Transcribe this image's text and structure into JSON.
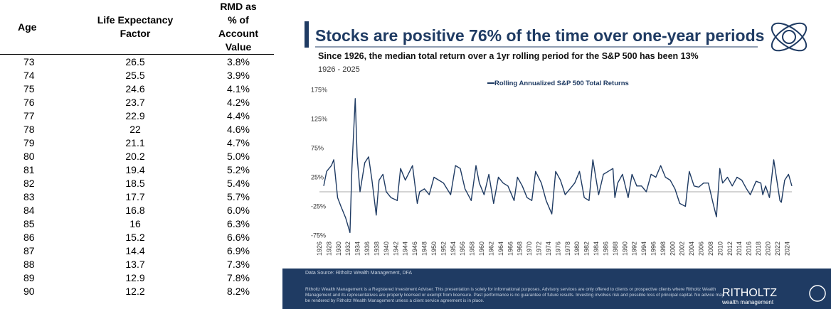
{
  "table": {
    "header": [
      "Age",
      "Life Expectancy Factor",
      "RMD as % of Account Value"
    ],
    "rows": [
      [
        "73",
        "26.5",
        "3.8%"
      ],
      [
        "74",
        "25.5",
        "3.9%"
      ],
      [
        "75",
        "24.6",
        "4.1%"
      ],
      [
        "76",
        "23.7",
        "4.2%"
      ],
      [
        "77",
        "22.9",
        "4.4%"
      ],
      [
        "78",
        "22",
        "4.6%"
      ],
      [
        "79",
        "21.1",
        "4.7%"
      ],
      [
        "80",
        "20.2",
        "5.0%"
      ],
      [
        "81",
        "19.4",
        "5.2%"
      ],
      [
        "82",
        "18.5",
        "5.4%"
      ],
      [
        "83",
        "17.7",
        "5.7%"
      ],
      [
        "84",
        "16.8",
        "6.0%"
      ],
      [
        "85",
        "16",
        "6.3%"
      ],
      [
        "86",
        "15.2",
        "6.6%"
      ],
      [
        "87",
        "14.4",
        "6.9%"
      ],
      [
        "88",
        "13.7",
        "7.3%"
      ],
      [
        "89",
        "12.9",
        "7.8%"
      ],
      [
        "90",
        "12.2",
        "8.2%"
      ]
    ]
  },
  "chart_data": {
    "type": "line",
    "title": "Stocks are positive 76% of the time over one-year periods",
    "subtitle": "Since 1926, the median total return over a 1yr rolling period for the S&P 500 has been 13%",
    "date_range": "1926 - 2025",
    "source": "Data Source: Ritholtz Wealth Management, DFA",
    "disclaimer": "Ritholtz Wealth Management is a Registered Investment Adviser. This presentation is solely for informational purposes. Advisory services are only offered to clients or prospective clients where Ritholtz Wealth Management and its representatives are properly licensed or exempt from licensure. Past performance is no guarantee of future results. Investing involves risk and possible loss of principal capital. No advice may be rendered by Ritholtz Wealth Management unless a client service agreement is in place.",
    "logo": [
      "RITHOLTZ",
      "wealth management"
    ],
    "x": [
      1926.9,
      1927.5,
      1928.5,
      1929,
      1929.8,
      1930.5,
      1931.5,
      1932.4,
      1932.8,
      1933.5,
      1933.9,
      1934.5,
      1935.5,
      1936.3,
      1937,
      1937.9,
      1938.5,
      1939.3,
      1940,
      1941,
      1942.3,
      1943,
      1944,
      1945.5,
      1946.5,
      1947,
      1948,
      1949,
      1950,
      1951,
      1952,
      1953.5,
      1954.5,
      1955.5,
      1956.5,
      1957.8,
      1958.8,
      1959.5,
      1960.5,
      1961.5,
      1962.5,
      1963.5,
      1964.5,
      1965.5,
      1966.8,
      1967.5,
      1968.5,
      1969.5,
      1970.5,
      1971.3,
      1972.5,
      1973.5,
      1974.7,
      1975.5,
      1976.5,
      1977.5,
      1978.5,
      1979.5,
      1980.5,
      1981.5,
      1982.5,
      1983.3,
      1984.5,
      1985.5,
      1986.5,
      1987.5,
      1987.9,
      1988.5,
      1989.5,
      1990.7,
      1991.5,
      1992.5,
      1993.5,
      1994.5,
      1995.5,
      1996.5,
      1997.5,
      1998.5,
      1999.5,
      2000.5,
      2001.5,
      2002.7,
      2003.5,
      2004.5,
      2005.5,
      2006.5,
      2007.5,
      2008.5,
      2009.2,
      2009.9,
      2010.5,
      2011.5,
      2012.5,
      2013.5,
      2014.5,
      2015.5,
      2016.3,
      2017.5,
      2018.5,
      2018.9,
      2019.5,
      2020.3,
      2021.2,
      2022.5,
      2022.8,
      2023.5,
      2024.3,
      2025
    ],
    "series": [
      {
        "name": "Rolling Annualized S&P 500 Total Returns",
        "color": "#1f3b63",
        "values": [
          10,
          35,
          45,
          55,
          -10,
          -25,
          -45,
          -70,
          40,
          160,
          60,
          0,
          50,
          60,
          20,
          -40,
          20,
          30,
          0,
          -10,
          -15,
          40,
          20,
          45,
          -20,
          0,
          5,
          -5,
          25,
          20,
          15,
          -5,
          45,
          40,
          5,
          -15,
          45,
          15,
          -5,
          30,
          -20,
          25,
          15,
          10,
          -15,
          25,
          10,
          -10,
          -15,
          35,
          15,
          -15,
          -38,
          35,
          20,
          -5,
          5,
          15,
          35,
          -10,
          -15,
          55,
          -5,
          30,
          35,
          40,
          -10,
          15,
          30,
          -10,
          30,
          10,
          10,
          0,
          30,
          25,
          45,
          25,
          20,
          5,
          -20,
          -25,
          35,
          10,
          8,
          15,
          15,
          -20,
          -43,
          40,
          15,
          25,
          10,
          25,
          20,
          5,
          -5,
          18,
          15,
          -5,
          10,
          -10,
          55,
          -15,
          -18,
          20,
          30,
          10
        ]
      }
    ],
    "xlim": [
      1926,
      2025
    ],
    "ylim": [
      -75,
      175
    ],
    "xticks": [
      1926,
      1928,
      1930,
      1932,
      1934,
      1936,
      1938,
      1940,
      1942,
      1944,
      1946,
      1948,
      1950,
      1952,
      1954,
      1956,
      1958,
      1960,
      1962,
      1964,
      1966,
      1968,
      1970,
      1972,
      1974,
      1976,
      1978,
      1980,
      1982,
      1984,
      1986,
      1988,
      1990,
      1992,
      1994,
      1996,
      1998,
      2000,
      2002,
      2004,
      2006,
      2008,
      2010,
      2012,
      2014,
      2016,
      2018,
      2020,
      2022,
      2024
    ],
    "yticks": [
      {
        "value": -75,
        "label": "-75%"
      },
      {
        "value": -25,
        "label": "-25%"
      },
      {
        "value": 25,
        "label": "25%"
      },
      {
        "value": 75,
        "label": "75%"
      },
      {
        "value": 125,
        "label": "125%"
      },
      {
        "value": 175,
        "label": "175%"
      }
    ],
    "zero_line": 0
  }
}
